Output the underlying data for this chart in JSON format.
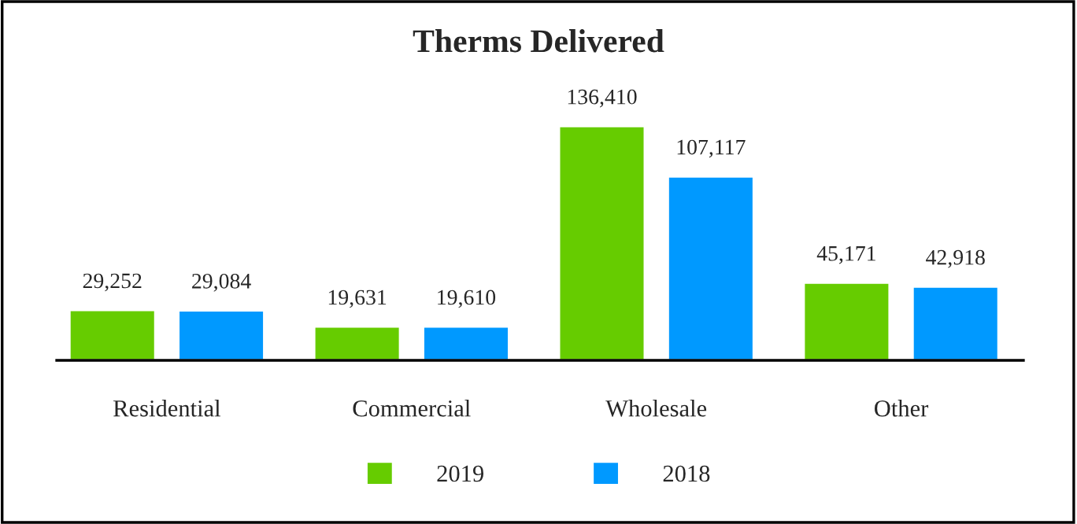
{
  "chart_data": {
    "type": "bar",
    "title": "Therms Delivered",
    "categories": [
      "Residential",
      "Commercial",
      "Wholesale",
      "Other"
    ],
    "series": [
      {
        "name": "2019",
        "color": "#66cc00",
        "values": [
          29252,
          19631,
          136410,
          45171
        ],
        "value_labels": [
          "29,252",
          "19,631",
          "136,410",
          "45,171"
        ]
      },
      {
        "name": "2018",
        "color": "#0099ff",
        "values": [
          29084,
          19610,
          107117,
          42918
        ],
        "value_labels": [
          "29,084",
          "19,610",
          "107,117",
          "42,918"
        ]
      }
    ],
    "legend": "bottom",
    "grid": false
  }
}
